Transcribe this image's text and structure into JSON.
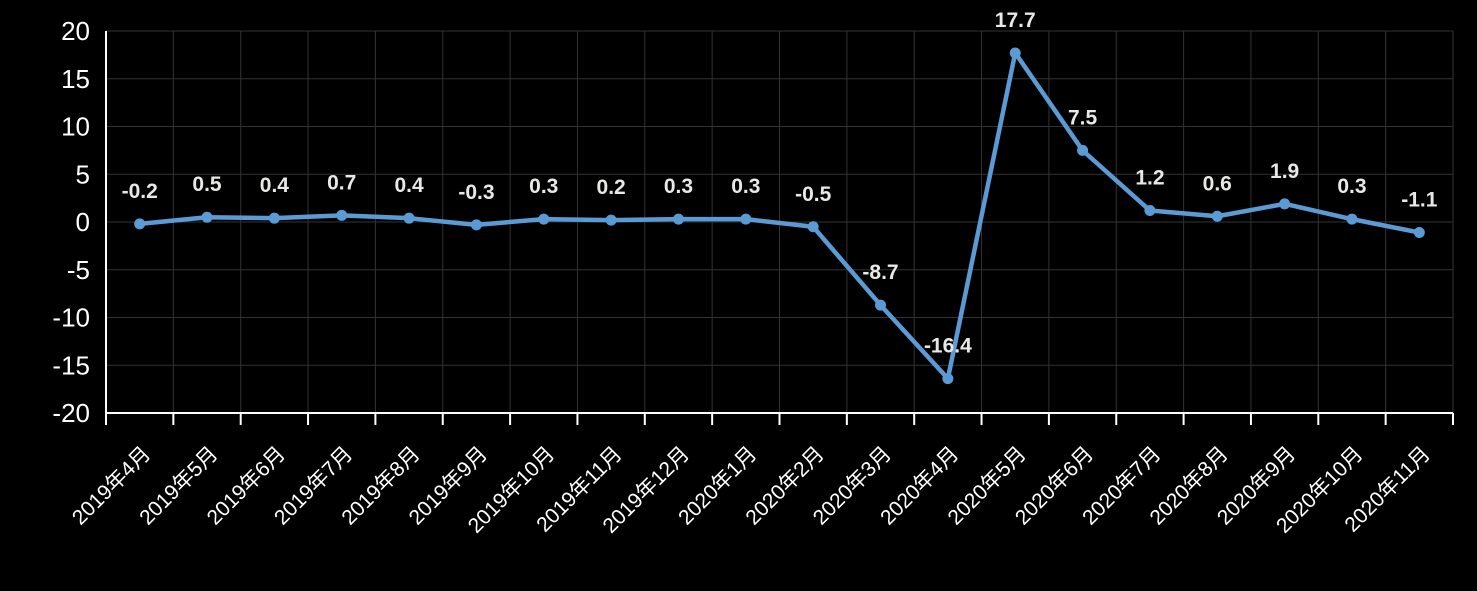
{
  "chart_data": {
    "type": "line",
    "title": "",
    "xlabel": "",
    "ylabel": "",
    "categories": [
      "2019年4月",
      "2019年5月",
      "2019年6月",
      "2019年7月",
      "2019年8月",
      "2019年9月",
      "2019年10月",
      "2019年11月",
      "2019年12月",
      "2020年1月",
      "2020年2月",
      "2020年3月",
      "2020年4月",
      "2020年5月",
      "2020年6月",
      "2020年7月",
      "2020年8月",
      "2020年9月",
      "2020年10月",
      "2020年11月"
    ],
    "series": [
      {
        "name": "",
        "values": [
          -0.2,
          0.5,
          0.4,
          0.7,
          0.4,
          -0.3,
          0.3,
          0.2,
          0.3,
          0.3,
          -0.5,
          -8.7,
          -16.4,
          17.7,
          7.5,
          1.2,
          0.6,
          1.9,
          0.3,
          -1.1
        ],
        "data_labels": [
          "-0.2",
          "0.5",
          "0.4",
          "0.7",
          "0.4",
          "-0.3",
          "0.3",
          "0.2",
          "0.3",
          "0.3",
          "-0.5",
          "-8.7",
          "-16.4",
          "17.7",
          "7.5",
          "1.2",
          "0.6",
          "1.9",
          "0.3",
          "-1.1"
        ]
      }
    ],
    "ylim": [
      -20,
      20
    ],
    "yticks": [
      20,
      15,
      10,
      5,
      0,
      -5,
      -10,
      -15,
      -20
    ],
    "grid": true,
    "legend": "none",
    "x_label_rotation_deg": -45,
    "colors": {
      "background": "#000000",
      "line": "#5B9BD5",
      "marker": "#5B9BD5",
      "gridline": "#333333",
      "axis": "#FFFFFF",
      "axis_label": "#FFFFFF",
      "data_label": "#E8E8E6"
    }
  }
}
